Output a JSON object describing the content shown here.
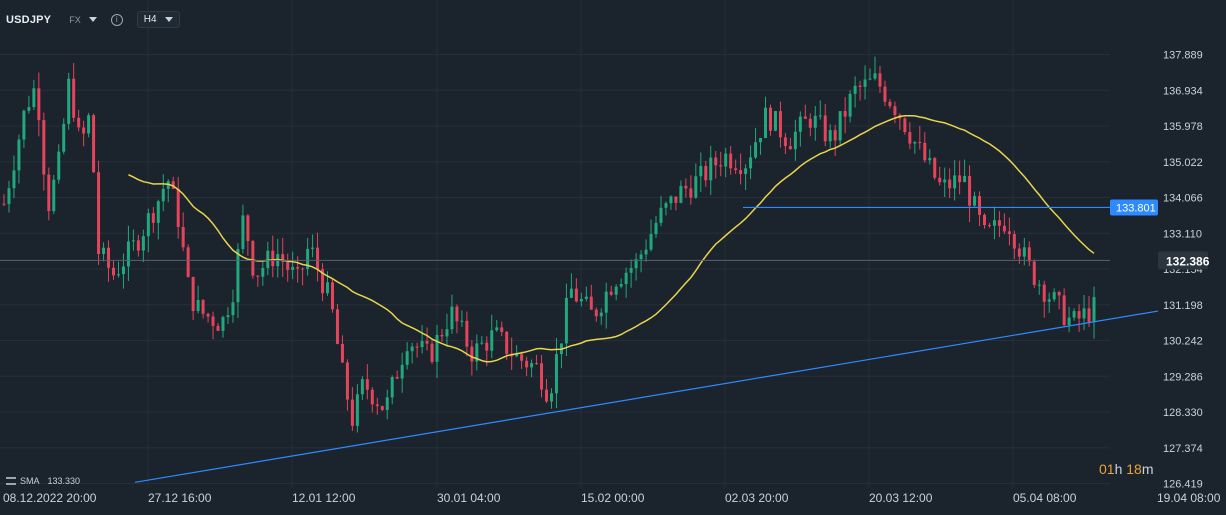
{
  "header": {
    "symbol": "USDJPY",
    "market": "FX",
    "timeframe": "H4"
  },
  "indicator": {
    "name": "SMA",
    "value": "133.330"
  },
  "timer": {
    "h_value": "01",
    "h_unit": "h",
    "m_value": "18",
    "m_unit": "m"
  },
  "colors": {
    "background": "#1b232c",
    "up": "#21a87e",
    "down": "#e4445c",
    "sma": "#e8d44d",
    "trendline": "#2e8bff",
    "grid": "#262f39"
  },
  "chart_data": {
    "type": "candlestick",
    "symbol": "USDJPY",
    "timeframe": "H4",
    "ylim": [
      126.419,
      138.845
    ],
    "y_ticks": [
      "137.889",
      "136.934",
      "135.978",
      "135.022",
      "134.066",
      "133.110",
      "132.154",
      "131.198",
      "130.242",
      "129.286",
      "128.330",
      "127.374",
      "126.419"
    ],
    "x_ticks": [
      "08.12.2022  20:00",
      "27.12  16:00",
      "12.01  12:00",
      "30.01  04:00",
      "15.02  00:00",
      "02.03  20:00",
      "20.03  12:00",
      "05.04  08:00",
      "19.04  08:00"
    ],
    "last_price": "132.386",
    "horizontal_line": {
      "label": "133.801",
      "value": 133.801
    },
    "trendline": {
      "from": {
        "x": "22.12",
        "y": 126.45
      },
      "to": {
        "x": "18.04",
        "y": 131.03
      }
    },
    "sma_value": 133.33,
    "close_path": [
      [
        0,
        133.9
      ],
      [
        0.02,
        136.5
      ],
      [
        0.03,
        137.1
      ],
      [
        0.04,
        133.8
      ],
      [
        0.05,
        134.9
      ],
      [
        0.06,
        137.2
      ],
      [
        0.07,
        135.4
      ],
      [
        0.08,
        136.4
      ],
      [
        0.085,
        132.7
      ],
      [
        0.1,
        132.0
      ],
      [
        0.12,
        132.8
      ],
      [
        0.14,
        133.9
      ],
      [
        0.15,
        134.6
      ],
      [
        0.16,
        133.5
      ],
      [
        0.17,
        131.5
      ],
      [
        0.18,
        131.0
      ],
      [
        0.2,
        130.7
      ],
      [
        0.21,
        131.6
      ],
      [
        0.22,
        133.6
      ],
      [
        0.23,
        132.0
      ],
      [
        0.25,
        132.6
      ],
      [
        0.27,
        131.8
      ],
      [
        0.28,
        132.8
      ],
      [
        0.3,
        131.2
      ],
      [
        0.31,
        129.4
      ],
      [
        0.32,
        128.1
      ],
      [
        0.33,
        129.1
      ],
      [
        0.35,
        128.4
      ],
      [
        0.37,
        130.3
      ],
      [
        0.39,
        129.8
      ],
      [
        0.41,
        131.0
      ],
      [
        0.43,
        129.9
      ],
      [
        0.45,
        130.4
      ],
      [
        0.47,
        129.8
      ],
      [
        0.49,
        129.5
      ],
      [
        0.5,
        128.8
      ],
      [
        0.52,
        131.6
      ],
      [
        0.54,
        130.9
      ],
      [
        0.56,
        131.9
      ],
      [
        0.58,
        132.3
      ],
      [
        0.6,
        133.5
      ],
      [
        0.62,
        134.2
      ],
      [
        0.64,
        134.6
      ],
      [
        0.66,
        135.2
      ],
      [
        0.68,
        135.0
      ],
      [
        0.7,
        136.3
      ],
      [
        0.72,
        135.6
      ],
      [
        0.74,
        136.2
      ],
      [
        0.76,
        135.6
      ],
      [
        0.78,
        136.9
      ],
      [
        0.8,
        137.2
      ],
      [
        0.82,
        136.4
      ],
      [
        0.84,
        135.3
      ],
      [
        0.86,
        134.3
      ],
      [
        0.88,
        134.6
      ],
      [
        0.9,
        133.0
      ],
      [
        0.92,
        133.5
      ],
      [
        0.94,
        132.2
      ],
      [
        0.96,
        131.4
      ],
      [
        0.98,
        130.7
      ],
      [
        1.0,
        131.1
      ]
    ]
  }
}
